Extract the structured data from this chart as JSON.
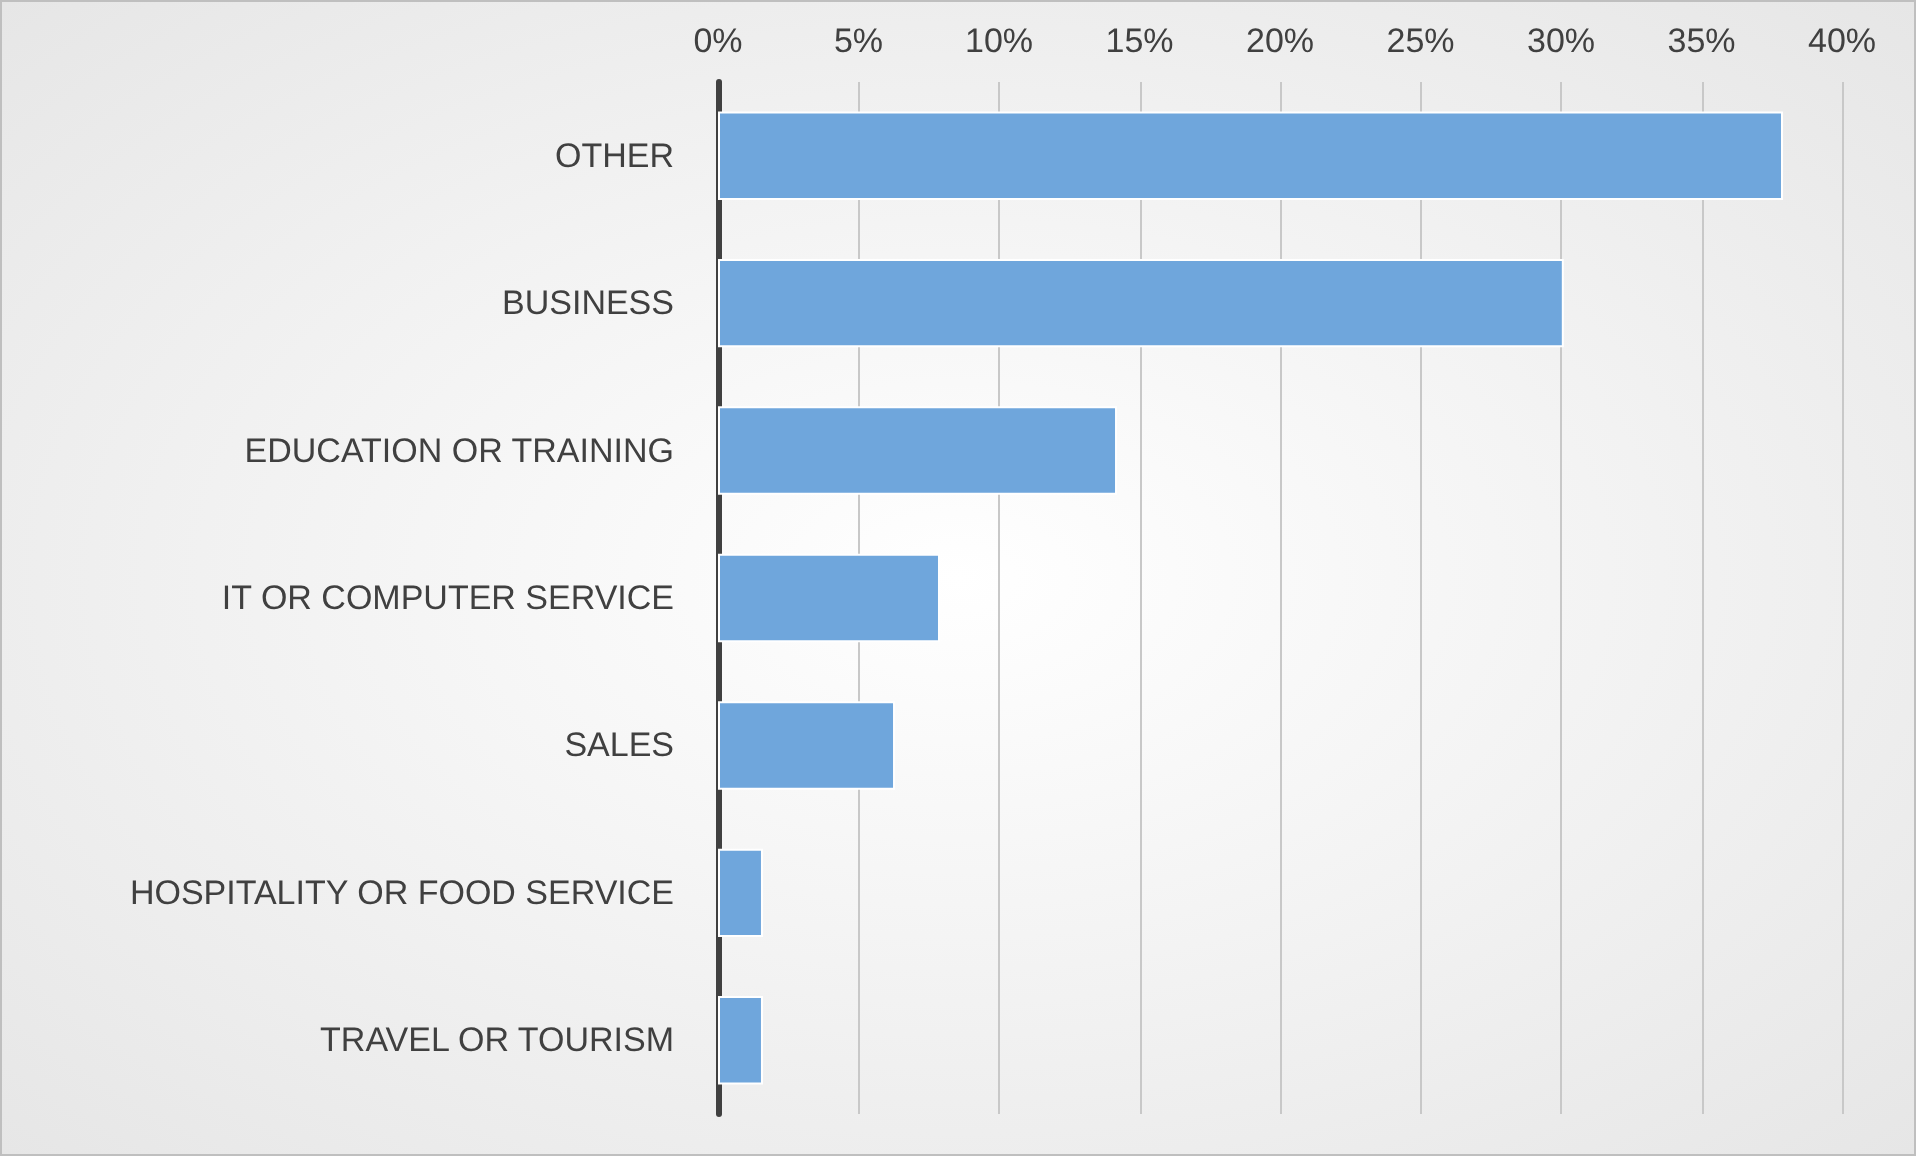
{
  "chart_data": {
    "type": "bar",
    "orientation": "horizontal",
    "categories": [
      "OTHER",
      "BUSINESS",
      "EDUCATION OR TRAINING",
      "IT OR COMPUTER SERVICE",
      "SALES",
      "HOSPITALITY OR FOOD SERVICE",
      "TRAVEL OR TOURISM"
    ],
    "values": [
      37.9,
      30.1,
      14.2,
      7.9,
      6.3,
      1.6,
      1.6
    ],
    "color": "#6fa6dc",
    "xlim": [
      0,
      40
    ],
    "xticks": [
      {
        "value": 0,
        "label": "0%"
      },
      {
        "value": 5,
        "label": "5%"
      },
      {
        "value": 10,
        "label": "10%"
      },
      {
        "value": 15,
        "label": "15%"
      },
      {
        "value": 20,
        "label": "20%"
      },
      {
        "value": 25,
        "label": "25%"
      },
      {
        "value": 30,
        "label": "30%"
      },
      {
        "value": 35,
        "label": "35%"
      },
      {
        "value": 40,
        "label": "40%"
      }
    ],
    "grid": "x"
  }
}
